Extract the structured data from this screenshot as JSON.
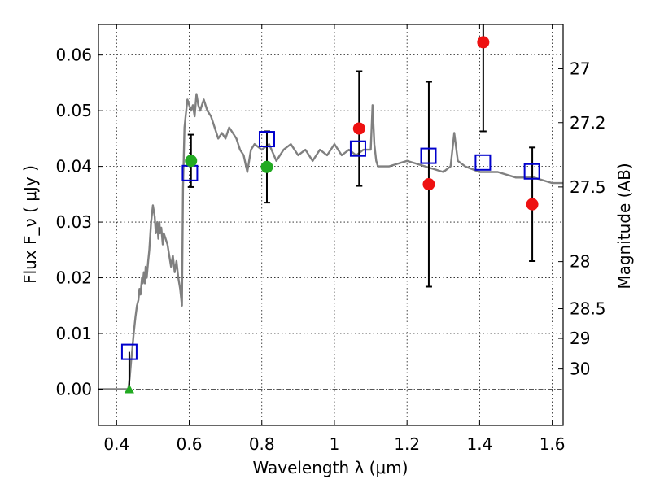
{
  "chart_data": {
    "type": "scatter",
    "title": "",
    "xlabel": "Wavelength  λ (μm)",
    "ylabel": "Flux  F_ν  ( μJy )",
    "ylabel_right": "Magnitude (AB)",
    "xlim": [
      0.35,
      1.63
    ],
    "ylim": [
      -0.0065,
      0.0655
    ],
    "grid": true,
    "legend": "none",
    "x_ticks": [
      {
        "value": 0.4,
        "label": "0.4"
      },
      {
        "value": 0.6,
        "label": "0.6"
      },
      {
        "value": 0.8,
        "label": "0.8"
      },
      {
        "value": 1.0,
        "label": "1"
      },
      {
        "value": 1.2,
        "label": "1.2"
      },
      {
        "value": 1.4,
        "label": "1.4"
      },
      {
        "value": 1.6,
        "label": "1.6"
      }
    ],
    "y_ticks": [
      {
        "value": 0.0,
        "label": "0.00"
      },
      {
        "value": 0.01,
        "label": "0.01"
      },
      {
        "value": 0.02,
        "label": "0.02"
      },
      {
        "value": 0.03,
        "label": "0.03"
      },
      {
        "value": 0.04,
        "label": "0.04"
      },
      {
        "value": 0.05,
        "label": "0.05"
      },
      {
        "value": 0.06,
        "label": "0.06"
      }
    ],
    "right_ticks": [
      {
        "value": 27,
        "label": "27"
      },
      {
        "value": 27.2,
        "label": "27.2"
      },
      {
        "value": 27.5,
        "label": "27.5"
      },
      {
        "value": 28,
        "label": "28"
      },
      {
        "value": 28.5,
        "label": "28.5"
      },
      {
        "value": 29,
        "label": "29"
      },
      {
        "value": 30,
        "label": "30"
      }
    ],
    "colors": {
      "sed": "#808080",
      "model": "#0000cc",
      "green": "#22aa22",
      "red": "#ee1111",
      "errorbar": "#000000",
      "zero_line": "#555555"
    },
    "sed_curve": {
      "x": [
        0.35,
        0.425,
        0.432,
        0.436,
        0.44,
        0.443,
        0.447,
        0.452,
        0.456,
        0.46,
        0.463,
        0.466,
        0.47,
        0.472,
        0.475,
        0.478,
        0.48,
        0.483,
        0.487,
        0.49,
        0.495,
        0.5,
        0.505,
        0.508,
        0.512,
        0.515,
        0.518,
        0.52,
        0.523,
        0.527,
        0.53,
        0.535,
        0.54,
        0.545,
        0.55,
        0.555,
        0.56,
        0.565,
        0.57,
        0.575,
        0.58,
        0.583,
        0.587,
        0.59,
        0.595,
        0.6,
        0.605,
        0.61,
        0.615,
        0.62,
        0.625,
        0.63,
        0.64,
        0.65,
        0.66,
        0.67,
        0.68,
        0.69,
        0.7,
        0.71,
        0.72,
        0.73,
        0.74,
        0.75,
        0.76,
        0.77,
        0.78,
        0.8,
        0.82,
        0.84,
        0.86,
        0.88,
        0.9,
        0.92,
        0.94,
        0.96,
        0.98,
        1.0,
        1.02,
        1.04,
        1.06,
        1.08,
        1.1,
        1.105,
        1.11,
        1.115,
        1.12,
        1.15,
        1.2,
        1.25,
        1.3,
        1.32,
        1.33,
        1.34,
        1.36,
        1.4,
        1.45,
        1.5,
        1.55,
        1.6,
        1.63
      ],
      "y": [
        0.0,
        0.0,
        0.0,
        0.002,
        0.005,
        0.007,
        0.01,
        0.013,
        0.015,
        0.016,
        0.018,
        0.017,
        0.02,
        0.019,
        0.021,
        0.019,
        0.022,
        0.02,
        0.023,
        0.025,
        0.03,
        0.033,
        0.031,
        0.028,
        0.03,
        0.027,
        0.03,
        0.028,
        0.029,
        0.026,
        0.028,
        0.027,
        0.026,
        0.024,
        0.022,
        0.024,
        0.021,
        0.023,
        0.02,
        0.018,
        0.015,
        0.036,
        0.047,
        0.049,
        0.052,
        0.051,
        0.05,
        0.051,
        0.049,
        0.053,
        0.051,
        0.05,
        0.052,
        0.05,
        0.049,
        0.047,
        0.045,
        0.046,
        0.045,
        0.047,
        0.046,
        0.045,
        0.043,
        0.042,
        0.039,
        0.043,
        0.044,
        0.043,
        0.044,
        0.041,
        0.043,
        0.044,
        0.042,
        0.043,
        0.041,
        0.043,
        0.042,
        0.044,
        0.042,
        0.043,
        0.042,
        0.043,
        0.043,
        0.051,
        0.044,
        0.041,
        0.04,
        0.04,
        0.041,
        0.04,
        0.039,
        0.04,
        0.046,
        0.041,
        0.04,
        0.039,
        0.039,
        0.038,
        0.038,
        0.037,
        0.037
      ]
    },
    "model_points": {
      "x": [
        0.435,
        0.602,
        0.814,
        1.065,
        1.259,
        1.409,
        1.544
      ],
      "y": [
        0.0067,
        0.0388,
        0.0449,
        0.0432,
        0.0419,
        0.0407,
        0.0391
      ]
    },
    "green_points": {
      "x": [
        0.435,
        0.605,
        0.814
      ],
      "y": [
        0.0,
        0.041,
        0.0399
      ],
      "yerr": [
        null,
        0.0047,
        0.0064
      ],
      "markers": [
        "triangle",
        "circle",
        "circle"
      ]
    },
    "red_points": {
      "x": [
        1.068,
        1.26,
        1.41,
        1.545
      ],
      "y": [
        0.0468,
        0.0368,
        0.0623,
        0.0332
      ],
      "yerr": [
        0.0103,
        0.0184,
        0.016,
        0.0102
      ]
    }
  }
}
